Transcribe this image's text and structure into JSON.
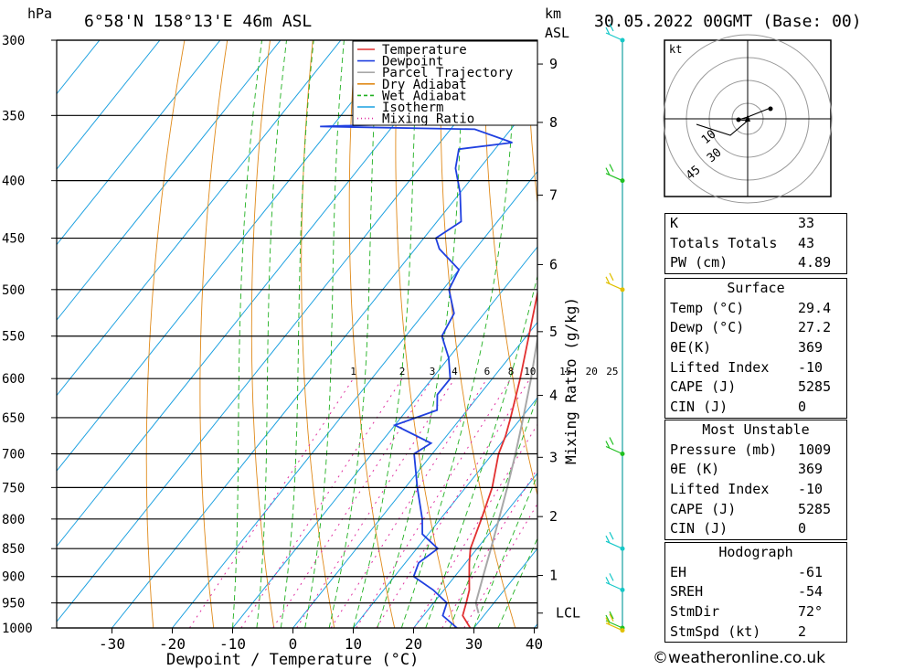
{
  "header": {
    "location": "6°58'N  158°13'E  46m  ASL",
    "datetime": "30.05.2022  00GMT  (Base: 00)",
    "pressure_unit": "hPa",
    "km_unit": "km",
    "asl_unit": "ASL"
  },
  "chart_data": {
    "type": "line",
    "title": "",
    "xlabel": "Dewpoint / Temperature (°C)",
    "ylabel": "hPa",
    "right_label": "Mixing Ratio (g/kg)",
    "xlim": [
      -40,
      40
    ],
    "ylim": [
      1000,
      300
    ],
    "x_ticks": [
      -30,
      -20,
      -10,
      0,
      10,
      20,
      30,
      40
    ],
    "pressure_levels": [
      300,
      350,
      400,
      450,
      500,
      550,
      600,
      650,
      700,
      750,
      800,
      850,
      900,
      950,
      1000
    ],
    "km_ticks": [
      {
        "label": "1",
        "p": 898
      },
      {
        "label": "2",
        "p": 796
      },
      {
        "label": "3",
        "p": 705
      },
      {
        "label": "4",
        "p": 621
      },
      {
        "label": "5",
        "p": 545
      },
      {
        "label": "6",
        "p": 475
      },
      {
        "label": "7",
        "p": 412
      },
      {
        "label": "8",
        "p": 355
      },
      {
        "label": "9",
        "p": 315
      }
    ],
    "lcl": {
      "label": "LCL",
      "p": 970
    },
    "mixing_ratio_labels": [
      {
        "label": "1",
        "w": 1
      },
      {
        "label": "2",
        "w": 2
      },
      {
        "label": "3",
        "w": 3
      },
      {
        "label": "4",
        "w": 4
      },
      {
        "label": "6",
        "w": 6
      },
      {
        "label": "8",
        "w": 8
      },
      {
        "label": "10",
        "w": 10
      },
      {
        "label": "15",
        "w": 15
      },
      {
        "label": "20",
        "w": 20
      },
      {
        "label": "25",
        "w": 25
      }
    ],
    "legend": {
      "placement": "top-right",
      "entries": [
        {
          "name": "Temperature",
          "color": "#e23030",
          "style": "solid"
        },
        {
          "name": "Dewpoint",
          "color": "#2040e0",
          "style": "solid"
        },
        {
          "name": "Parcel Trajectory",
          "color": "#a8a8a8",
          "style": "solid"
        },
        {
          "name": "Dry Adiabat",
          "color": "#e08a1a",
          "style": "solid"
        },
        {
          "name": "Wet Adiabat",
          "color": "#20b020",
          "style": "dashed"
        },
        {
          "name": "Isotherm",
          "color": "#1aa0e0",
          "style": "solid"
        },
        {
          "name": "Mixing Ratio",
          "color": "#e030a0",
          "style": "dotted"
        }
      ]
    },
    "series": [
      {
        "name": "Temperature",
        "color": "#e23030",
        "points": [
          [
            1000,
            29.4
          ],
          [
            975,
            26.5
          ],
          [
            950,
            25.4
          ],
          [
            925,
            24.2
          ],
          [
            900,
            22.4
          ],
          [
            875,
            20.6
          ],
          [
            850,
            18.9
          ],
          [
            800,
            16.8
          ],
          [
            750,
            14.4
          ],
          [
            700,
            11.0
          ],
          [
            675,
            9.8
          ],
          [
            650,
            8.2
          ],
          [
            600,
            4.6
          ],
          [
            550,
            0.4
          ],
          [
            500,
            -4.2
          ],
          [
            475,
            -6.6
          ],
          [
            450,
            -9.4
          ],
          [
            425,
            -12.6
          ],
          [
            400,
            -16.6
          ],
          [
            375,
            -20.6
          ],
          [
            365,
            -22.0
          ],
          [
            350,
            -24.6
          ],
          [
            325,
            -30.2
          ],
          [
            310,
            -34.0
          ],
          [
            300,
            -35.6
          ]
        ]
      },
      {
        "name": "Dewpoint",
        "color": "#2040e0",
        "points": [
          [
            1000,
            27.2
          ],
          [
            975,
            23.2
          ],
          [
            950,
            22.2
          ],
          [
            925,
            18.2
          ],
          [
            900,
            13.2
          ],
          [
            875,
            12.2
          ],
          [
            850,
            13.5
          ],
          [
            825,
            9.0
          ],
          [
            800,
            7.0
          ],
          [
            750,
            2.0
          ],
          [
            700,
            -3.0
          ],
          [
            685,
            -1.6
          ],
          [
            660,
            -10.0
          ],
          [
            640,
            -5.0
          ],
          [
            620,
            -7.0
          ],
          [
            600,
            -7.0
          ],
          [
            575,
            -10.0
          ],
          [
            550,
            -14.0
          ],
          [
            525,
            -15.0
          ],
          [
            500,
            -19.0
          ],
          [
            480,
            -20.0
          ],
          [
            460,
            -26.0
          ],
          [
            450,
            -28.0
          ],
          [
            435,
            -26.0
          ],
          [
            410,
            -30.0
          ],
          [
            390,
            -34.0
          ],
          [
            375,
            -36.0
          ],
          [
            370,
            -28.0
          ],
          [
            360,
            -36.0
          ],
          [
            358,
            -62.0
          ],
          [
            355,
            -40.0
          ],
          [
            340,
            -46.0
          ],
          [
            330,
            -48.0
          ],
          [
            320,
            -51.0
          ],
          [
            305,
            -42.0
          ],
          [
            300,
            -44.0
          ]
        ]
      },
      {
        "name": "Parcel Trajectory",
        "color": "#a8a8a8",
        "points": [
          [
            970,
            28.8
          ],
          [
            950,
            27.0
          ],
          [
            900,
            24.7
          ],
          [
            850,
            22.3
          ],
          [
            800,
            19.7
          ],
          [
            750,
            16.9
          ],
          [
            700,
            13.8
          ],
          [
            650,
            10.3
          ],
          [
            600,
            6.4
          ],
          [
            550,
            1.9
          ],
          [
            500,
            -3.0
          ],
          [
            450,
            -8.9
          ],
          [
            400,
            -15.9
          ],
          [
            365,
            -21.0
          ]
        ]
      }
    ]
  },
  "wind_barbs": [
    {
      "p": 300,
      "color": "#16c8c8"
    },
    {
      "p": 400,
      "color": "#20c020"
    },
    {
      "p": 500,
      "color": "#e0c000"
    },
    {
      "p": 700,
      "color": "#20c020"
    },
    {
      "p": 850,
      "color": "#16c8c8"
    },
    {
      "p": 925,
      "color": "#16c8c8"
    },
    {
      "p": 1000,
      "color": "#20c020"
    },
    {
      "p": 1005,
      "color": "#e0c000"
    }
  ],
  "hodograph": {
    "unit": "kt",
    "ring_labels": [
      "10",
      "30",
      "45"
    ]
  },
  "indices": [
    {
      "k": "K",
      "v": "33"
    },
    {
      "k": "Totals Totals",
      "v": "43"
    },
    {
      "k": "PW (cm)",
      "v": "4.89"
    }
  ],
  "surface": {
    "title": "Surface",
    "rows": [
      {
        "k": "Temp (°C)",
        "v": "29.4"
      },
      {
        "k": "Dewp (°C)",
        "v": "27.2"
      },
      {
        "k": "θE(K)",
        "v": "369"
      },
      {
        "k": "Lifted Index",
        "v": "-10"
      },
      {
        "k": "CAPE (J)",
        "v": "5285"
      },
      {
        "k": "CIN (J)",
        "v": "0"
      }
    ]
  },
  "most_unstable": {
    "title": "Most Unstable",
    "rows": [
      {
        "k": "Pressure (mb)",
        "v": "1009"
      },
      {
        "k": "θE (K)",
        "v": "369"
      },
      {
        "k": "Lifted Index",
        "v": "-10"
      },
      {
        "k": "CAPE (J)",
        "v": "5285"
      },
      {
        "k": "CIN (J)",
        "v": "0"
      }
    ]
  },
  "hodograph_table": {
    "title": "Hodograph",
    "rows": [
      {
        "k": "EH",
        "v": "-61"
      },
      {
        "k": "SREH",
        "v": "-54"
      },
      {
        "k": "StmDir",
        "v": "72°"
      },
      {
        "k": "StmSpd (kt)",
        "v": "2"
      }
    ]
  },
  "footer": "©weatheronline.co.uk"
}
